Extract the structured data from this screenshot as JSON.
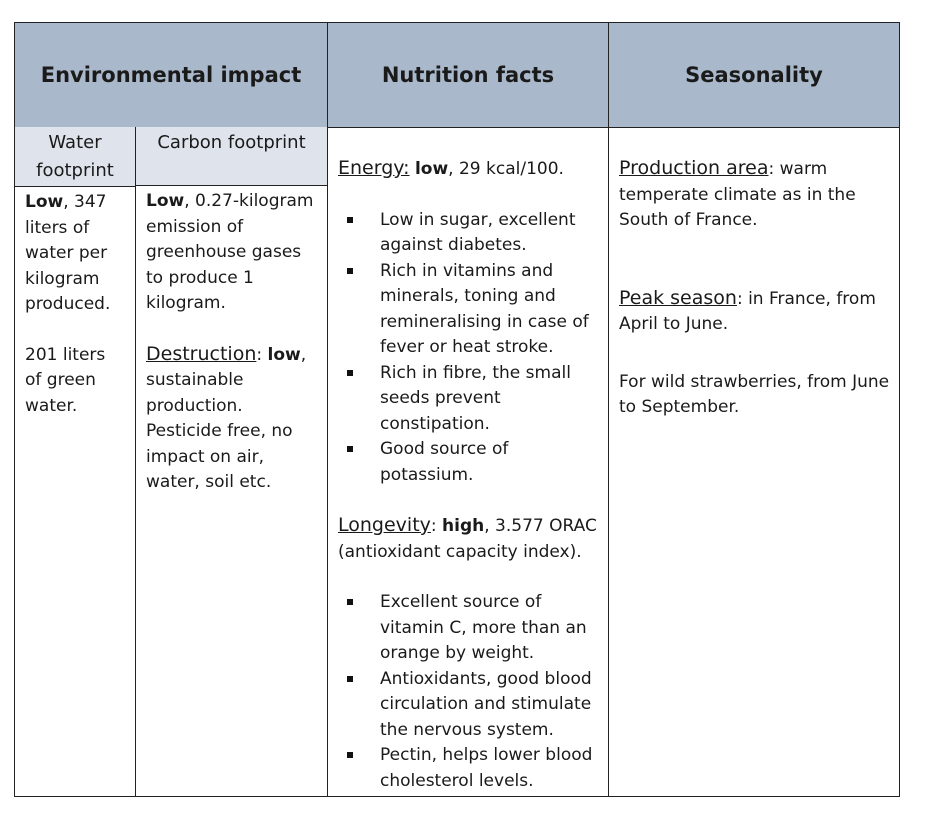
{
  "headers": {
    "environmental": "Environmental impact",
    "nutrition": "Nutrition facts",
    "seasonality": "Seasonality"
  },
  "subheaders": {
    "water": "Water footprint",
    "carbon": "Carbon footprint"
  },
  "water": {
    "p1_bold": "Low",
    "p1_rest": ", 347 liters of water per kilogram produced.",
    "p2": "201 liters of green water."
  },
  "carbon": {
    "p1_bold": "Low",
    "p1_rest": ", 0.27-kilogram emission of greenhouse gases to produce 1 kilogram.",
    "destruction_label": "Destruction",
    "destruction_colon": ": ",
    "destruction_bold": "low",
    "destruction_rest": ", sustainable production. Pesticide free, no impact on air, water, soil etc."
  },
  "nutrition": {
    "energy_label": "Energy:",
    "energy_bold": "low",
    "energy_rest": ", 29 kcal/100.",
    "energy_bullets": [
      "Low in sugar, excellent against diabetes.",
      "Rich in vitamins and minerals, toning and remineralising in case of fever or heat stroke.",
      "Rich in fibre, the small seeds prevent constipation.",
      "Good source of potassium."
    ],
    "longevity_label": "Longevity",
    "longevity_colon": ": ",
    "longevity_bold": "high",
    "longevity_rest": ", 3.577 ORAC (antioxidant capacity index).",
    "longevity_bullets": [
      "Excellent source of vitamin C, more than an orange by weight.",
      "Antioxidants, good blood circulation and stimulate the nervous system.",
      "Pectin, helps lower blood cholesterol levels."
    ]
  },
  "seasonality": {
    "production_label": "Production area",
    "production_rest": ": warm temperate climate as in the South of France.",
    "peak_label": "Peak season",
    "peak_rest": ": in France, from April to June.",
    "wild": "For wild strawberries, from June to September."
  },
  "colors": {
    "header_bg": "#a9b8cb",
    "subheader_bg": "#dfe4ec",
    "border": "#222222"
  }
}
